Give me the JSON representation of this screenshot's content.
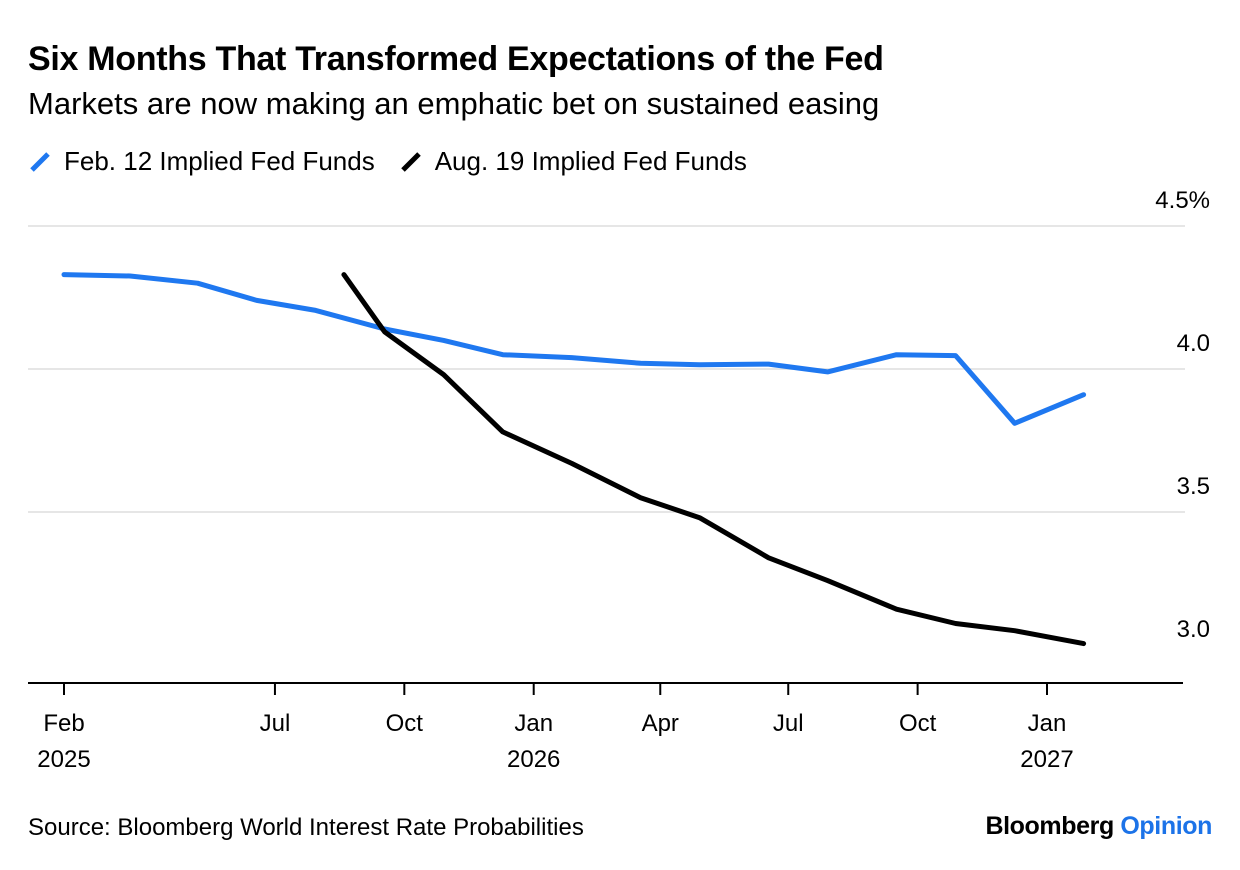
{
  "colors": {
    "series_feb": "#1f78f0",
    "series_aug": "#000000",
    "grid": "#e6e6e6",
    "brand_accent": "#1c73e8"
  },
  "footer": {
    "source": "Source: Bloomberg World Interest Rate Probabilities",
    "brand_main": "Bloomberg",
    "brand_accent": "Opinion"
  },
  "chart_data": {
    "type": "line",
    "title": "Six Months That Transformed Expectations of the Fed",
    "subtitle": "Markets are now making an emphatic bet on sustained easing",
    "xlabel": "",
    "ylabel": "",
    "x_type": "date",
    "xlim": [
      "2025-01-01",
      "2027-03-31"
    ],
    "ylim": [
      2.92,
      4.5
    ],
    "y_ticks": [
      {
        "value": 4.5,
        "label": "4.5%"
      },
      {
        "value": 4.0,
        "label": "4.0"
      },
      {
        "value": 3.5,
        "label": "3.5"
      },
      {
        "value": 3.0,
        "label": "3.0"
      }
    ],
    "x_ticks": [
      {
        "date": "2025-02-01",
        "label": "Feb",
        "year": "2025"
      },
      {
        "date": "2025-07-01",
        "label": "Jul",
        "year": ""
      },
      {
        "date": "2025-10-01",
        "label": "Oct",
        "year": ""
      },
      {
        "date": "2026-01-01",
        "label": "Jan",
        "year": "2026"
      },
      {
        "date": "2026-04-01",
        "label": "Apr",
        "year": ""
      },
      {
        "date": "2026-07-01",
        "label": "Jul",
        "year": ""
      },
      {
        "date": "2026-10-01",
        "label": "Oct",
        "year": ""
      },
      {
        "date": "2027-01-01",
        "label": "Jan",
        "year": "2027"
      }
    ],
    "grid": true,
    "legend_position": "top-left",
    "series": [
      {
        "name": "Feb. 12 Implied Fed Funds",
        "color": "#1f78f0",
        "points": [
          {
            "x": "2025-02-01",
            "y": 4.33
          },
          {
            "x": "2025-03-20",
            "y": 4.325
          },
          {
            "x": "2025-05-07",
            "y": 4.3
          },
          {
            "x": "2025-06-18",
            "y": 4.24
          },
          {
            "x": "2025-07-30",
            "y": 4.205
          },
          {
            "x": "2025-09-17",
            "y": 4.14
          },
          {
            "x": "2025-10-29",
            "y": 4.1
          },
          {
            "x": "2025-12-10",
            "y": 4.05
          },
          {
            "x": "2026-01-28",
            "y": 4.04
          },
          {
            "x": "2026-03-18",
            "y": 4.02
          },
          {
            "x": "2026-04-29",
            "y": 4.015
          },
          {
            "x": "2026-06-17",
            "y": 4.017
          },
          {
            "x": "2026-07-29",
            "y": 3.99
          },
          {
            "x": "2026-09-16",
            "y": 4.05
          },
          {
            "x": "2026-10-28",
            "y": 4.047
          },
          {
            "x": "2026-12-09",
            "y": 3.81
          },
          {
            "x": "2027-01-27",
            "y": 3.91
          }
        ]
      },
      {
        "name": "Aug. 19 Implied Fed Funds",
        "color": "#000000",
        "points": [
          {
            "x": "2025-08-19",
            "y": 4.33
          },
          {
            "x": "2025-09-17",
            "y": 4.13
          },
          {
            "x": "2025-10-29",
            "y": 3.98
          },
          {
            "x": "2025-12-10",
            "y": 3.78
          },
          {
            "x": "2026-01-28",
            "y": 3.67
          },
          {
            "x": "2026-03-18",
            "y": 3.55
          },
          {
            "x": "2026-04-29",
            "y": 3.48
          },
          {
            "x": "2026-06-17",
            "y": 3.34
          },
          {
            "x": "2026-07-29",
            "y": 3.26
          },
          {
            "x": "2026-09-16",
            "y": 3.16
          },
          {
            "x": "2026-10-28",
            "y": 3.11
          },
          {
            "x": "2026-12-09",
            "y": 3.085
          },
          {
            "x": "2027-01-27",
            "y": 3.04
          }
        ]
      }
    ]
  }
}
